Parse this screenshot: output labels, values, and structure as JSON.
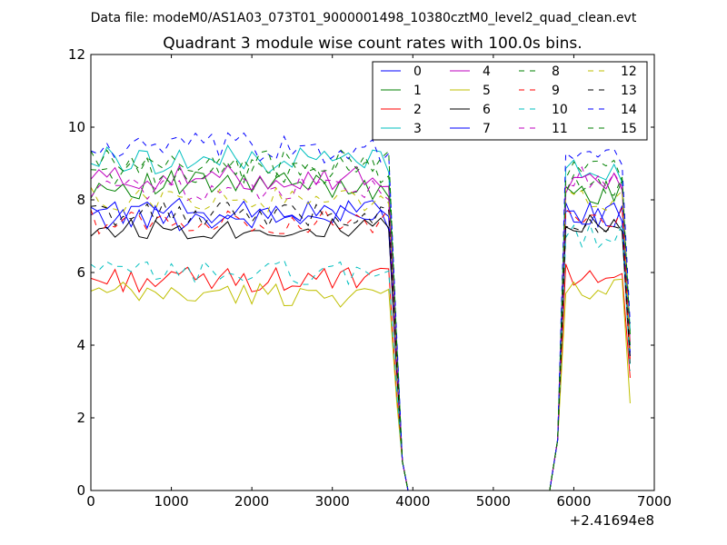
{
  "suptitle": "Data file: modeM0/AS1A03_073T01_9000001498_10380cztM0_level2_quad_clean.evt",
  "chart_data": {
    "type": "line",
    "title": "Quadrant 3 module wise count rates with 100.0s bins.",
    "xlabel": "",
    "ylabel": "",
    "x_offset_label": "+2.41694e8",
    "xlim": [
      0,
      7000
    ],
    "ylim": [
      0,
      12
    ],
    "x_ticks": [
      0,
      1000,
      2000,
      3000,
      4000,
      5000,
      6000,
      7000
    ],
    "y_ticks": [
      0,
      2,
      4,
      6,
      8,
      10,
      12
    ],
    "x_tick_labels": [
      "0",
      "1000",
      "2000",
      "3000",
      "4000",
      "5000",
      "6000",
      "7000"
    ],
    "y_tick_labels": [
      "0",
      "2",
      "4",
      "6",
      "8",
      "10",
      "12"
    ],
    "grid": false,
    "legend_placement": "top-right",
    "legend_columns": 4,
    "segments": [
      {
        "start": 0,
        "count": 38,
        "step": 100
      },
      {
        "start": 3800,
        "count": 4,
        "step": 70
      },
      {
        "start": 4000,
        "count": 18,
        "step": 100
      },
      {
        "start": 5800,
        "count": 9,
        "step": 100
      },
      {
        "start": 6700,
        "count": 1,
        "step": 100
      }
    ],
    "series": [
      {
        "name": "0",
        "color": "#0000ff",
        "dash": "solid",
        "level1": 7.5,
        "level2": 7.6,
        "amp": 0.35,
        "end": 3.8
      },
      {
        "name": "1",
        "color": "#008000",
        "dash": "solid",
        "level1": 8.4,
        "level2": 8.2,
        "amp": 0.4,
        "end": 4.0
      },
      {
        "name": "2",
        "color": "#ff0000",
        "dash": "solid",
        "level1": 5.8,
        "level2": 6.0,
        "amp": 0.35,
        "end": 3.1
      },
      {
        "name": "3",
        "color": "#00bfbf",
        "dash": "solid",
        "level1": 9.1,
        "level2": 8.8,
        "amp": 0.4,
        "end": 4.4
      },
      {
        "name": "4",
        "color": "#bf00bf",
        "dash": "solid",
        "level1": 8.6,
        "level2": 8.5,
        "amp": 0.35,
        "end": 4.1
      },
      {
        "name": "5",
        "color": "#bfbf00",
        "dash": "solid",
        "level1": 5.4,
        "level2": 5.5,
        "amp": 0.35,
        "end": 2.4
      },
      {
        "name": "6",
        "color": "#000000",
        "dash": "solid",
        "level1": 7.2,
        "level2": 7.4,
        "amp": 0.3,
        "end": 3.5
      },
      {
        "name": "7",
        "color": "#0000ff",
        "dash": "solid",
        "level1": 7.7,
        "level2": 7.5,
        "amp": 0.35,
        "end": 3.7
      },
      {
        "name": "8",
        "color": "#008000",
        "dash": "dashed",
        "level1": 8.8,
        "level2": 8.4,
        "amp": 0.4,
        "end": 4.2
      },
      {
        "name": "9",
        "color": "#ff0000",
        "dash": "dashed",
        "level1": 7.4,
        "level2": 7.5,
        "amp": 0.35,
        "end": 3.6
      },
      {
        "name": "10",
        "color": "#00bfbf",
        "dash": "dashed",
        "level1": 6.0,
        "level2": 7.0,
        "amp": 0.35,
        "end": 3.3
      },
      {
        "name": "11",
        "color": "#bf00bf",
        "dash": "dashed",
        "level1": 8.3,
        "level2": 8.6,
        "amp": 0.35,
        "end": 4.0
      },
      {
        "name": "12",
        "color": "#bfbf00",
        "dash": "dashed",
        "level1": 8.0,
        "level2": 8.0,
        "amp": 0.35,
        "end": 3.9
      },
      {
        "name": "13",
        "color": "#000000",
        "dash": "dashed",
        "level1": 7.6,
        "level2": 7.3,
        "amp": 0.35,
        "end": 3.6
      },
      {
        "name": "14",
        "color": "#0000ff",
        "dash": "dashed",
        "level1": 9.4,
        "level2": 9.2,
        "amp": 0.45,
        "end": 4.6
      },
      {
        "name": "15",
        "color": "#008000",
        "dash": "dashed",
        "level1": 9.0,
        "level2": 8.7,
        "amp": 0.4,
        "end": 4.3
      }
    ]
  }
}
